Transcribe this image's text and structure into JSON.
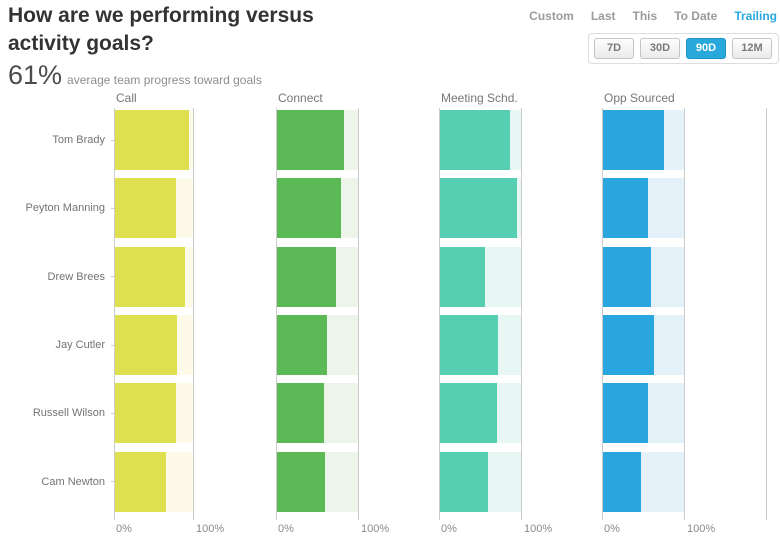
{
  "header": {
    "title_line1": "How are we performing versus",
    "title_line2": "activity goals?",
    "stat_value": "61%",
    "stat_caption": "average team progress toward goals"
  },
  "time_nav": {
    "links": [
      {
        "label": "Custom",
        "active": false
      },
      {
        "label": "Last",
        "active": false
      },
      {
        "label": "This",
        "active": false
      },
      {
        "label": "To Date",
        "active": false
      },
      {
        "label": "Trailing",
        "active": true
      }
    ],
    "buttons": [
      {
        "label": "7D",
        "active": false
      },
      {
        "label": "30D",
        "active": false
      },
      {
        "label": "90D",
        "active": true
      },
      {
        "label": "12M",
        "active": false
      }
    ],
    "active_link_color": "#29a8e0",
    "active_button_color": "#29a8dc"
  },
  "chart_data": {
    "type": "bar",
    "orientation": "horizontal",
    "title": "How are we performing versus activity goals?",
    "categories": [
      "Tom Brady",
      "Peyton Manning",
      "Drew Brees",
      "Jay Cutler",
      "Russell Wilson",
      "Cam Newton"
    ],
    "axis": {
      "min": 0,
      "max": 100,
      "ticks": [
        "0%",
        "100%"
      ]
    },
    "grid": "vertical lines at 0% and 100% only",
    "series": [
      {
        "name": "Call",
        "color": "#dee04f",
        "track_color": "#fdfaea",
        "values": [
          95,
          78,
          90,
          80,
          78,
          66
        ]
      },
      {
        "name": "Connect",
        "color": "#5bba56",
        "track_color": "#edf4ea",
        "values": [
          83,
          79,
          73,
          62,
          58,
          59
        ]
      },
      {
        "name": "Meeting Schd.",
        "color": "#56ceb1",
        "track_color": "#e8f7f3",
        "values": [
          87,
          95,
          55,
          71,
          70,
          59
        ]
      },
      {
        "name": "Opp Sourced",
        "color": "#29a6dd",
        "track_color": "#e4f1f9",
        "values": [
          75,
          55,
          59,
          63,
          55,
          47
        ]
      }
    ]
  }
}
